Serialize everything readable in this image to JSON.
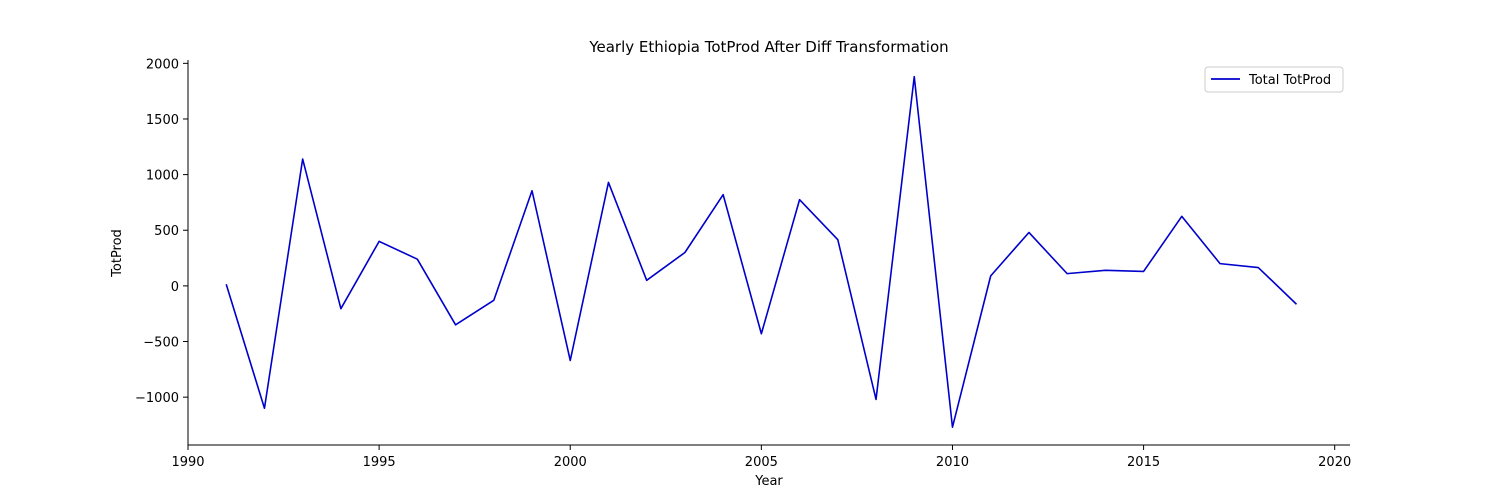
{
  "chart_data": {
    "type": "line",
    "title": "Yearly Ethiopia TotProd After Diff Transformation",
    "xlabel": "Year",
    "ylabel": "TotProd",
    "xlim": [
      1990,
      2020.4
    ],
    "ylim": [
      -1430,
      2030
    ],
    "x_ticks": [
      1990,
      1995,
      2000,
      2005,
      2010,
      2015,
      2020
    ],
    "y_ticks": [
      -1000,
      -500,
      0,
      500,
      1000,
      1500,
      2000
    ],
    "y_tick_labels": [
      "−1000",
      "−500",
      "0",
      "500",
      "1000",
      "1500",
      "2000"
    ],
    "legend_position": "top-right",
    "grid": false,
    "series": [
      {
        "name": "Total TotProd",
        "color": "#0000cc",
        "x": [
          1991,
          1992,
          1993,
          1994,
          1995,
          1996,
          1997,
          1998,
          1999,
          2000,
          2001,
          2002,
          2003,
          2004,
          2005,
          2006,
          2007,
          2008,
          2009,
          2010,
          2011,
          2012,
          2013,
          2014,
          2015,
          2016,
          2017,
          2018,
          2019
        ],
        "values": [
          15,
          -1100,
          1140,
          -205,
          400,
          240,
          -350,
          -130,
          855,
          -670,
          930,
          50,
          300,
          820,
          -430,
          775,
          415,
          -1020,
          1880,
          -1270,
          90,
          480,
          110,
          140,
          130,
          625,
          200,
          165,
          -165
        ]
      }
    ]
  }
}
